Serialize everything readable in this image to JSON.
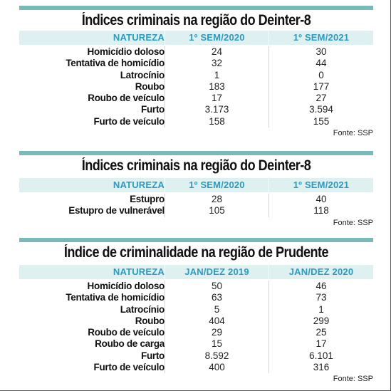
{
  "tables": [
    {
      "title": "Índices criminais na região do Deinter-8",
      "headers": [
        "NATUREZA",
        "1º SEM/2020",
        "1º SEM/2021"
      ],
      "rows": [
        [
          "Homicídio doloso",
          "24",
          "30"
        ],
        [
          "Tentativa de homicídio",
          "32",
          "44"
        ],
        [
          "Latrocínio",
          "1",
          "0"
        ],
        [
          "Roubo",
          "183",
          "177"
        ],
        [
          "Roubo de veículo",
          "17",
          "27"
        ],
        [
          "Furto",
          "3.173",
          "3.594"
        ],
        [
          "Furto de veículo",
          "158",
          "155"
        ]
      ],
      "source": "Fonte: SSP"
    },
    {
      "title": "Índices criminais na região do Deinter-8",
      "headers": [
        "NATUREZA",
        "1º SEM/2020",
        "1º SEM/2021"
      ],
      "rows": [
        [
          "Estupro",
          "28",
          "40"
        ],
        [
          "Estupro de vulnerável",
          "105",
          "118"
        ]
      ],
      "source": "Fonte: SSP"
    },
    {
      "title": "Índice de criminalidade na região de Prudente",
      "headers": [
        "NATUREZA",
        "JAN/DEZ 2019",
        "JAN/DEZ 2020"
      ],
      "rows": [
        [
          "Homicídio doloso",
          "50",
          "46"
        ],
        [
          "Tentativa de homicídio",
          "63",
          "73"
        ],
        [
          "Latrocínio",
          "5",
          "1"
        ],
        [
          "Roubo",
          "404",
          "299"
        ],
        [
          "Roubo de veículo",
          "29",
          "25"
        ],
        [
          "Roubo de carga",
          "15",
          "17"
        ],
        [
          "Furto",
          "8.592",
          "6.101"
        ],
        [
          "Furto de veículo",
          "400",
          "316"
        ]
      ],
      "source": "Fonte: SSP"
    }
  ],
  "colors": {
    "accent_bar": "#79b9b7",
    "header_text": "#2a9bc4",
    "header_bg": "#dff0f1"
  }
}
